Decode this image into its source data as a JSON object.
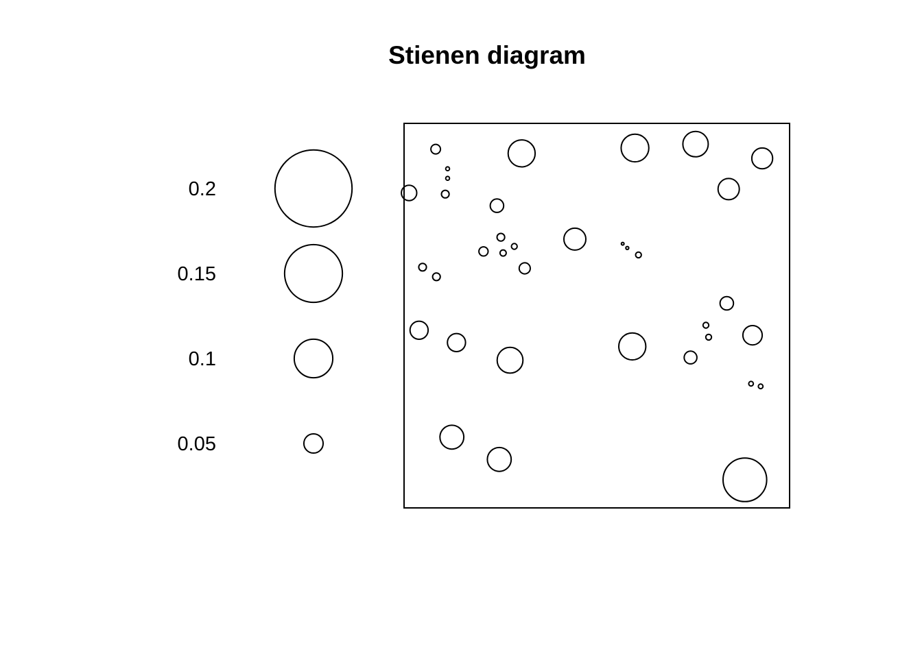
{
  "chart_data": {
    "type": "scatter",
    "title": "Stienen diagram",
    "legend": {
      "placement": "left",
      "values": [
        0.2,
        0.15,
        0.1,
        0.05
      ],
      "labels": [
        "0.2",
        "0.15",
        "0.1",
        "0.05"
      ]
    },
    "window": {
      "xlim": [
        0,
        1
      ],
      "ylim": [
        0,
        1
      ]
    },
    "points": [
      {
        "x": 0.082,
        "y": 0.933,
        "d": 0.025
      },
      {
        "x": 0.113,
        "y": 0.882,
        "d": 0.01
      },
      {
        "x": 0.113,
        "y": 0.857,
        "d": 0.01
      },
      {
        "x": 0.107,
        "y": 0.816,
        "d": 0.02
      },
      {
        "x": 0.013,
        "y": 0.819,
        "d": 0.04
      },
      {
        "x": 0.305,
        "y": 0.922,
        "d": 0.07
      },
      {
        "x": 0.241,
        "y": 0.786,
        "d": 0.035
      },
      {
        "x": 0.599,
        "y": 0.936,
        "d": 0.072
      },
      {
        "x": 0.756,
        "y": 0.946,
        "d": 0.066
      },
      {
        "x": 0.929,
        "y": 0.909,
        "d": 0.054
      },
      {
        "x": 0.842,
        "y": 0.829,
        "d": 0.055
      },
      {
        "x": 0.443,
        "y": 0.699,
        "d": 0.057
      },
      {
        "x": 0.251,
        "y": 0.704,
        "d": 0.02
      },
      {
        "x": 0.286,
        "y": 0.68,
        "d": 0.015
      },
      {
        "x": 0.206,
        "y": 0.667,
        "d": 0.024
      },
      {
        "x": 0.257,
        "y": 0.663,
        "d": 0.016
      },
      {
        "x": 0.313,
        "y": 0.623,
        "d": 0.029
      },
      {
        "x": 0.567,
        "y": 0.687,
        "d": 0.007
      },
      {
        "x": 0.579,
        "y": 0.676,
        "d": 0.008
      },
      {
        "x": 0.608,
        "y": 0.658,
        "d": 0.015
      },
      {
        "x": 0.048,
        "y": 0.626,
        "d": 0.02
      },
      {
        "x": 0.084,
        "y": 0.601,
        "d": 0.02
      },
      {
        "x": 0.837,
        "y": 0.532,
        "d": 0.035
      },
      {
        "x": 0.783,
        "y": 0.475,
        "d": 0.015
      },
      {
        "x": 0.79,
        "y": 0.444,
        "d": 0.015
      },
      {
        "x": 0.904,
        "y": 0.449,
        "d": 0.05
      },
      {
        "x": 0.039,
        "y": 0.462,
        "d": 0.047
      },
      {
        "x": 0.136,
        "y": 0.43,
        "d": 0.047
      },
      {
        "x": 0.275,
        "y": 0.384,
        "d": 0.067
      },
      {
        "x": 0.592,
        "y": 0.42,
        "d": 0.07
      },
      {
        "x": 0.743,
        "y": 0.391,
        "d": 0.033
      },
      {
        "x": 0.9,
        "y": 0.323,
        "d": 0.012
      },
      {
        "x": 0.925,
        "y": 0.316,
        "d": 0.012
      },
      {
        "x": 0.124,
        "y": 0.184,
        "d": 0.062
      },
      {
        "x": 0.247,
        "y": 0.126,
        "d": 0.062
      },
      {
        "x": 0.884,
        "y": 0.073,
        "d": 0.113
      }
    ]
  }
}
